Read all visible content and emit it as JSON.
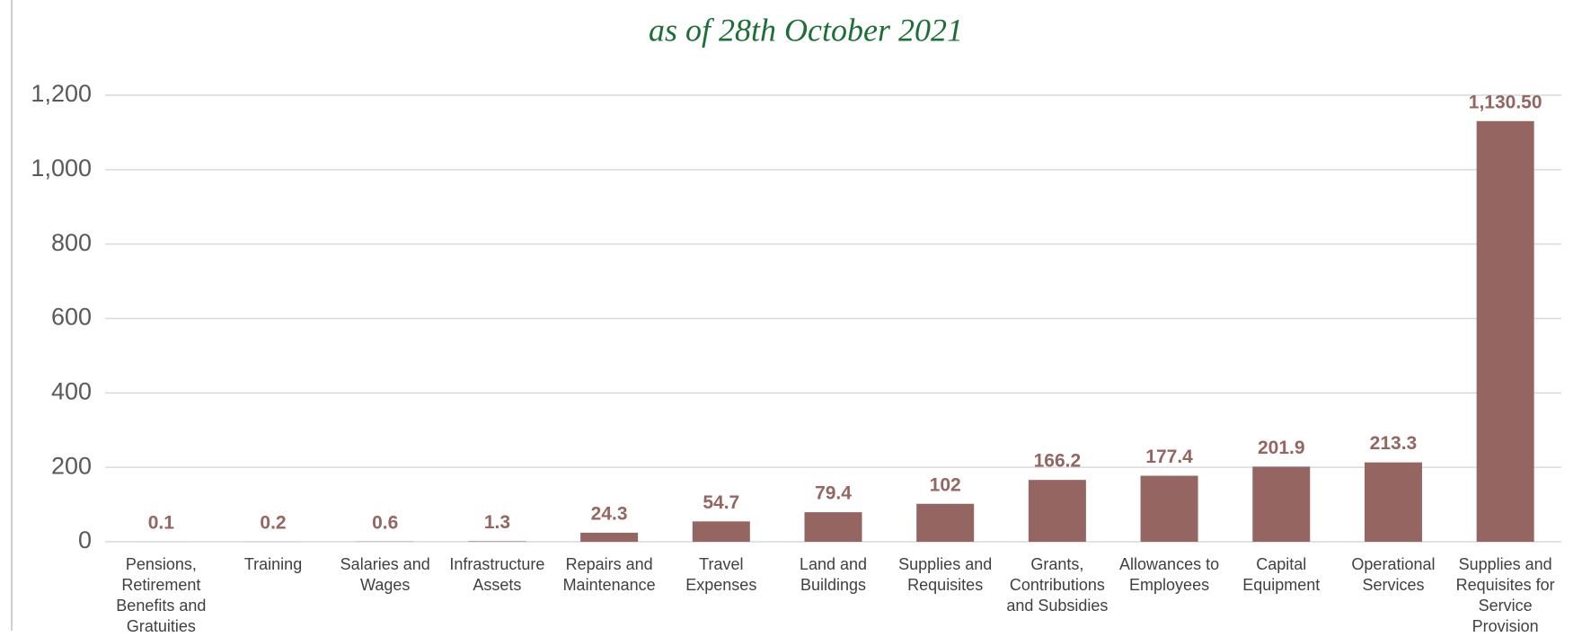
{
  "chart_data": {
    "type": "bar",
    "title": "as of 28th October 2021",
    "categories": [
      "Pensions, Retirement Benefits and Gratuities",
      "Training",
      "Salaries and Wages",
      "Infrastructure Assets",
      "Repairs and Maintenance",
      "Travel Expenses",
      "Land and Buildings",
      "Supplies and Requisites",
      "Grants, Contributions and Subsidies",
      "Allowances to Employees",
      "Capital Equipment",
      "Operational Services",
      "Supplies and Requisites for Service Provision"
    ],
    "values": [
      0.1,
      0.2,
      0.6,
      1.3,
      24.3,
      54.7,
      79.4,
      102,
      166.2,
      177.4,
      201.9,
      213.3,
      1130.5
    ],
    "value_labels": [
      "0.1",
      "0.2",
      "0.6",
      "1.3",
      "24.3",
      "54.7",
      "79.4",
      "102",
      "166.2",
      "177.4",
      "201.9",
      "213.3",
      "1,130.50"
    ],
    "color": "#956561",
    "ylim": [
      0,
      1200
    ],
    "yticks": [
      0,
      200,
      400,
      600,
      800,
      {
        "value": 1000,
        "label": "1,000"
      },
      {
        "value": 1200,
        "label": "1,200"
      }
    ],
    "grid": true
  }
}
